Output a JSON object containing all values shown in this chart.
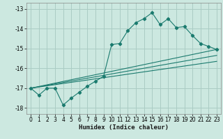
{
  "xlabel": "Humidex (Indice chaleur)",
  "bg_color": "#cce8e0",
  "grid_color": "#aaccc4",
  "line_color": "#1a7a6e",
  "xlim": [
    -0.5,
    23.5
  ],
  "ylim": [
    -18.3,
    -12.7
  ],
  "yticks": [
    -18,
    -17,
    -16,
    -15,
    -14,
    -13
  ],
  "xticks": [
    0,
    1,
    2,
    3,
    4,
    5,
    6,
    7,
    8,
    9,
    10,
    11,
    12,
    13,
    14,
    15,
    16,
    17,
    18,
    19,
    20,
    21,
    22,
    23
  ],
  "main_x": [
    0,
    1,
    2,
    3,
    4,
    5,
    6,
    7,
    8,
    9,
    10,
    11,
    12,
    13,
    14,
    15,
    16,
    17,
    18,
    19,
    20,
    21,
    22,
    23
  ],
  "main_y": [
    -17.0,
    -17.35,
    -17.0,
    -17.0,
    -17.85,
    -17.5,
    -17.2,
    -16.9,
    -16.65,
    -16.4,
    -14.8,
    -14.75,
    -14.1,
    -13.7,
    -13.5,
    -13.2,
    -13.8,
    -13.5,
    -13.95,
    -13.9,
    -14.35,
    -14.75,
    -14.9,
    -15.05
  ],
  "line2_x": [
    0,
    23
  ],
  "line2_y": [
    -17.0,
    -15.05
  ],
  "line3_x": [
    0,
    23
  ],
  "line3_y": [
    -17.0,
    -15.35
  ],
  "line4_x": [
    0,
    23
  ],
  "line4_y": [
    -17.0,
    -15.65
  ]
}
